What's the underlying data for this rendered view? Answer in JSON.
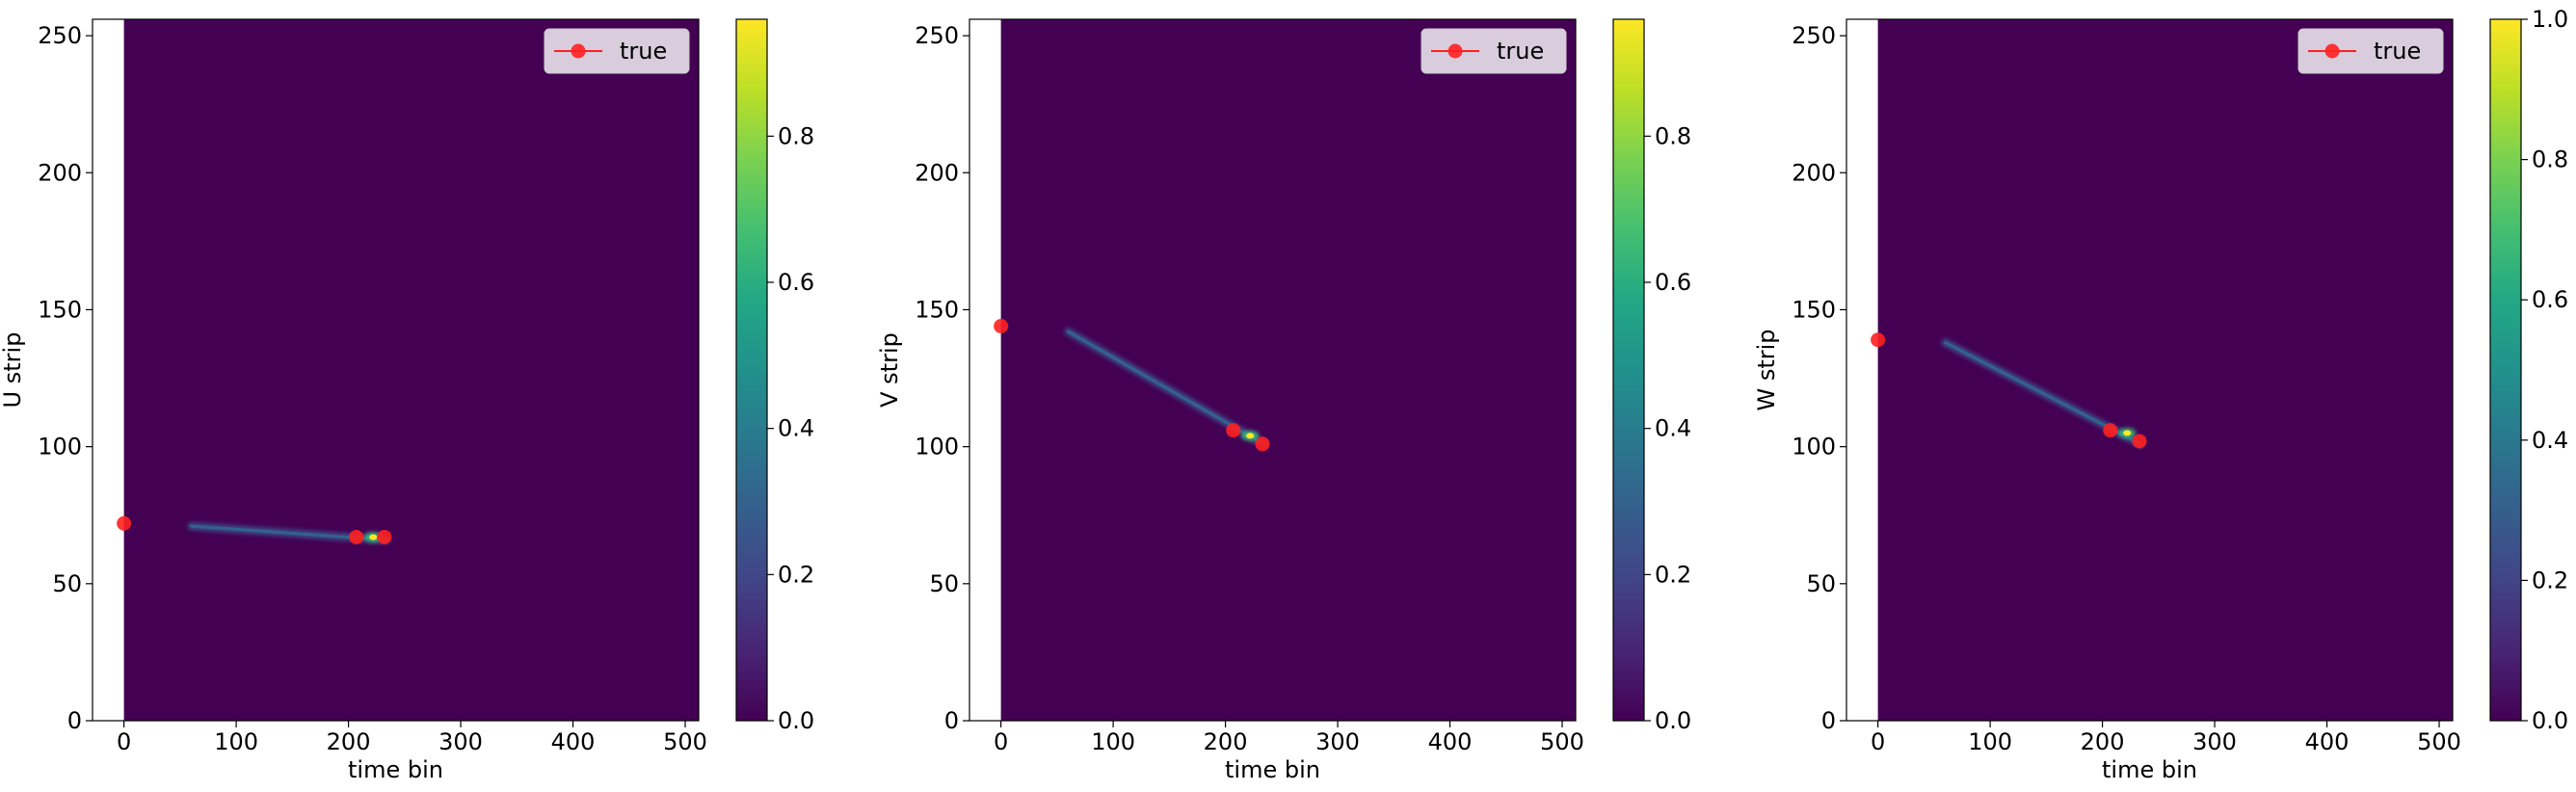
{
  "chart_data": [
    {
      "type": "heatmap",
      "xlabel": "time bin",
      "ylabel": "U strip",
      "xlim": [
        -28,
        512
      ],
      "ylim": [
        0,
        256
      ],
      "xticks": [
        0,
        100,
        200,
        300,
        400,
        500
      ],
      "yticks": [
        0,
        50,
        100,
        150,
        200,
        250
      ],
      "colormap": "viridis",
      "colorbar": {
        "min": 0.0,
        "max": 0.96,
        "ticks": [
          0.0,
          0.2,
          0.4,
          0.6,
          0.8
        ]
      },
      "track": {
        "start": [
          60,
          71
        ],
        "end": [
          234,
          66
        ],
        "peak": [
          222,
          67
        ]
      },
      "series": [
        {
          "name": "true",
          "color": "#ff2020",
          "x": [
            0,
            207,
            232
          ],
          "y": [
            72,
            67,
            67
          ]
        }
      ],
      "legend": "top-right"
    },
    {
      "type": "heatmap",
      "xlabel": "time bin",
      "ylabel": "V strip",
      "xlim": [
        -28,
        512
      ],
      "ylim": [
        0,
        256
      ],
      "xticks": [
        0,
        100,
        200,
        300,
        400,
        500
      ],
      "yticks": [
        0,
        50,
        100,
        150,
        200,
        250
      ],
      "colormap": "viridis",
      "colorbar": {
        "min": 0.0,
        "max": 0.96,
        "ticks": [
          0.0,
          0.2,
          0.4,
          0.6,
          0.8
        ]
      },
      "track": {
        "start": [
          60,
          142
        ],
        "end": [
          234,
          101
        ],
        "peak": [
          222,
          104
        ]
      },
      "series": [
        {
          "name": "true",
          "color": "#ff2020",
          "x": [
            0,
            207,
            233
          ],
          "y": [
            144,
            106,
            101
          ]
        }
      ],
      "legend": "top-right"
    },
    {
      "type": "heatmap",
      "xlabel": "time bin",
      "ylabel": "W strip",
      "xlim": [
        -28,
        512
      ],
      "ylim": [
        0,
        256
      ],
      "xticks": [
        0,
        100,
        200,
        300,
        400,
        500
      ],
      "yticks": [
        0,
        50,
        100,
        150,
        200,
        250
      ],
      "colormap": "viridis",
      "colorbar": {
        "min": 0.0,
        "max": 1.0,
        "ticks": [
          0.0,
          0.2,
          0.4,
          0.6,
          0.8,
          1.0
        ]
      },
      "track": {
        "start": [
          60,
          138
        ],
        "end": [
          234,
          101
        ],
        "peak": [
          222,
          105
        ]
      },
      "series": [
        {
          "name": "true",
          "color": "#ff2020",
          "x": [
            0,
            207,
            233
          ],
          "y": [
            139,
            106,
            102
          ]
        }
      ],
      "legend": "top-right"
    }
  ]
}
